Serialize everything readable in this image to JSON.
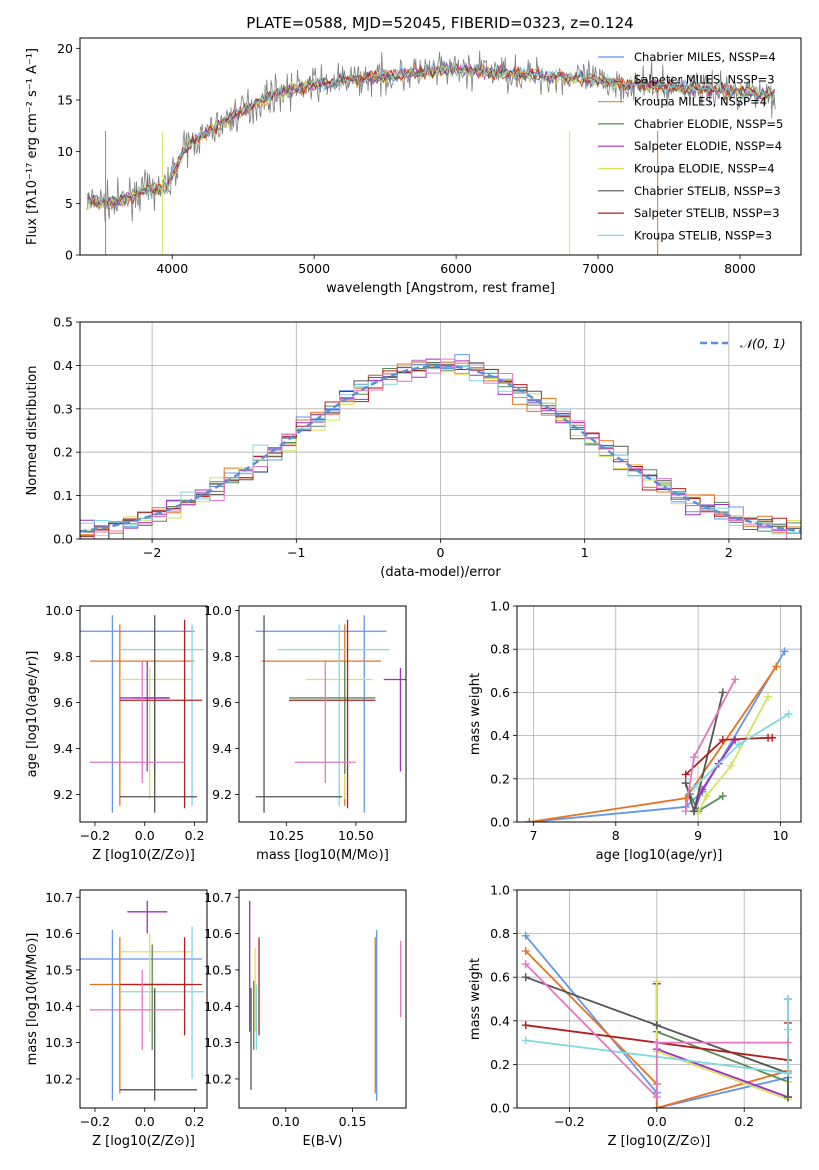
{
  "title": "PLATE=0588, MJD=52045, FIBERID=0323, z=0.124",
  "models": [
    {
      "name": "Chabrier MILES",
      "nssp": 4,
      "color": "#6495ed"
    },
    {
      "name": "Salpeter MILES",
      "nssp": 3,
      "color": "#e8731f"
    },
    {
      "name": "Kroupa MILES",
      "nssp": 4,
      "color": "#e6962c"
    },
    {
      "name": "Chabrier ELODIE",
      "nssp": 5,
      "color": "#5a8a5a"
    },
    {
      "name": "Salpeter ELODIE",
      "nssp": 4,
      "color": "#a12fc4"
    },
    {
      "name": "Kroupa ELODIE",
      "nssp": 4,
      "color": "#d6e35f"
    },
    {
      "name": "Chabrier STELIB",
      "nssp": 3,
      "color": "#555555"
    },
    {
      "name": "Salpeter STELIB",
      "nssp": 3,
      "color": "#b02020"
    },
    {
      "name": "Kroupa STELIB",
      "nssp": 3,
      "color": "#7fd9e0"
    }
  ],
  "chart_data": [
    {
      "id": "spectrum",
      "type": "line",
      "xlabel": "wavelength [Angstrom, rest frame]",
      "ylabel": "Flux [fλ10⁻¹⁷ erg cm⁻² s⁻¹ A⁻¹]",
      "xlim": [
        3350,
        8430
      ],
      "ylim": [
        0,
        21
      ],
      "xticks": [
        4000,
        5000,
        6000,
        7000,
        8000
      ],
      "yticks": [
        0,
        5,
        10,
        15,
        20
      ],
      "grid": false,
      "legend": "top-right",
      "continuum": {
        "x": [
          3400,
          3600,
          3800,
          3950,
          4100,
          4300,
          4500,
          4700,
          5000,
          5300,
          5600,
          6000,
          6400,
          6800,
          7200,
          7600,
          8000,
          8250
        ],
        "y": [
          5.2,
          5.0,
          6.2,
          6.5,
          10.5,
          12.3,
          14.0,
          15.5,
          16.5,
          17.0,
          17.5,
          18.0,
          17.6,
          17.2,
          16.5,
          16.2,
          15.8,
          15.5
        ]
      },
      "series": [
        {
          "name": "Chabrier MILES, NSSP=4",
          "color": "#6495ed"
        },
        {
          "name": "Salpeter MILES, NSSP=3",
          "color": "#e8731f"
        },
        {
          "name": "Kroupa MILES, NSSP=4",
          "color": "#e6962c"
        },
        {
          "name": "Chabrier ELODIE, NSSP=5",
          "color": "#5a8a5a"
        },
        {
          "name": "Salpeter ELODIE, NSSP=4",
          "color": "#a12fc4"
        },
        {
          "name": "Kroupa ELODIE, NSSP=4",
          "color": "#d6e35f"
        },
        {
          "name": "Chabrier STELIB, NSSP=3",
          "color": "#555555"
        },
        {
          "name": "Salpeter STELIB, NSSP=3",
          "color": "#b02020"
        },
        {
          "name": "Kroupa STELIB, NSSP=3",
          "color": "#7fd9e0"
        }
      ]
    },
    {
      "id": "residuals",
      "type": "line",
      "xlabel": "(data-model)/error",
      "ylabel": "Normed distribution",
      "xlim": [
        -2.5,
        2.5
      ],
      "ylim": [
        0,
        0.5
      ],
      "xticks": [
        -2,
        -1,
        0,
        1,
        2
      ],
      "yticks": [
        0.0,
        0.1,
        0.2,
        0.3,
        0.4,
        0.5
      ],
      "grid": true,
      "legend": "top-right",
      "reference": {
        "name": "𝒩(0, 1)",
        "color": "#5b8fd6",
        "style": "dashed"
      },
      "bin_width": 0.1,
      "series_colors": [
        "#6495ed",
        "#e8731f",
        "#5a8a5a",
        "#a12fc4",
        "#d6e35f",
        "#555555",
        "#b02020",
        "#7fd9e0",
        "#e377c2"
      ]
    },
    {
      "id": "age-vs-Z",
      "type": "scatter",
      "xlabel": "Z [log10(Z/Z⊙)]",
      "ylabel": "age  [log10(age/yr)]",
      "xlim": [
        -0.26,
        0.25
      ],
      "ylim": [
        9.08,
        10.02
      ],
      "xticks": [
        -0.2,
        0.0,
        0.2
      ],
      "yticks": [
        9.2,
        9.4,
        9.6,
        9.8,
        10.0
      ],
      "grid": false,
      "crosses": [
        {
          "color": "#6495ed",
          "x": -0.13,
          "y": 9.91,
          "x0": -0.26,
          "x1": 0.2,
          "y0": 9.12,
          "y1": 9.98
        },
        {
          "color": "#e8731f",
          "x": -0.1,
          "y": 9.78,
          "x0": -0.22,
          "x1": 0.2,
          "y0": 9.15,
          "y1": 9.94
        },
        {
          "color": "#7fd9e0",
          "x": 0.19,
          "y": 9.83,
          "x0": -0.1,
          "x1": 0.24,
          "y0": 9.15,
          "y1": 9.94
        },
        {
          "color": "#d6e35f",
          "x": 0.02,
          "y": 9.7,
          "x0": -0.1,
          "x1": 0.19,
          "y0": 9.18,
          "y1": 9.75
        },
        {
          "color": "#5a8a5a",
          "x": 0.04,
          "y": 9.62,
          "x0": -0.05,
          "x1": 0.1,
          "y0": 9.29,
          "y1": 9.78
        },
        {
          "color": "#555555",
          "x": 0.04,
          "y": 9.19,
          "x0": -0.1,
          "x1": 0.21,
          "y0": 9.12,
          "y1": 9.98
        },
        {
          "color": "#a12fc4",
          "x": 0.01,
          "y": 9.62,
          "x0": -0.1,
          "x1": 0.1,
          "y0": 9.3,
          "y1": 9.78
        },
        {
          "color": "#b02020",
          "x": 0.16,
          "y": 9.61,
          "x0": -0.1,
          "x1": 0.23,
          "y0": 9.14,
          "y1": 9.96
        },
        {
          "color": "#e377c2",
          "x": -0.01,
          "y": 9.34,
          "x0": -0.22,
          "x1": 0.16,
          "y0": 9.25,
          "y1": 9.78
        }
      ]
    },
    {
      "id": "age-vs-mass",
      "type": "scatter",
      "xlabel": "mass [log10(M/M⊙)]",
      "ylabel": "",
      "xlim": [
        10.08,
        10.68
      ],
      "ylim": [
        9.08,
        10.02
      ],
      "xticks": [
        10.25,
        10.5
      ],
      "yticks": [
        9.2,
        9.4,
        9.6,
        9.8,
        10.0
      ],
      "grid": false,
      "crosses": [
        {
          "color": "#6495ed",
          "x": 10.53,
          "y": 9.91,
          "x0": 10.14,
          "x1": 10.61,
          "y0": 9.12,
          "y1": 9.98
        },
        {
          "color": "#e8731f",
          "x": 10.46,
          "y": 9.78,
          "x0": 10.16,
          "x1": 10.59,
          "y0": 9.15,
          "y1": 9.94
        },
        {
          "color": "#7fd9e0",
          "x": 10.44,
          "y": 9.83,
          "x0": 10.22,
          "x1": 10.62,
          "y0": 9.15,
          "y1": 9.94
        },
        {
          "color": "#d6e35f",
          "x": 10.46,
          "y": 9.7,
          "x0": 10.32,
          "x1": 10.56,
          "y0": 9.18,
          "y1": 9.75
        },
        {
          "color": "#5a8a5a",
          "x": 10.46,
          "y": 9.62,
          "x0": 10.26,
          "x1": 10.57,
          "y0": 9.29,
          "y1": 9.78
        },
        {
          "color": "#555555",
          "x": 10.17,
          "y": 9.19,
          "x0": 10.14,
          "x1": 10.45,
          "y0": 9.12,
          "y1": 9.98
        },
        {
          "color": "#a12fc4",
          "x": 10.66,
          "y": 9.7,
          "x0": 10.6,
          "x1": 10.68,
          "y0": 9.3,
          "y1": 9.75
        },
        {
          "color": "#b02020",
          "x": 10.47,
          "y": 9.61,
          "x0": 10.26,
          "x1": 10.57,
          "y0": 9.14,
          "y1": 9.96
        },
        {
          "color": "#e377c2",
          "x": 10.39,
          "y": 9.34,
          "x0": 10.28,
          "x1": 10.5,
          "y0": 9.25,
          "y1": 9.78
        }
      ]
    },
    {
      "id": "weight-vs-age",
      "type": "line",
      "xlabel": "age  [log10(age/yr)]",
      "ylabel": "mass weight",
      "xlim": [
        6.8,
        10.25
      ],
      "ylim": [
        0,
        1
      ],
      "xticks": [
        7,
        8,
        9,
        10
      ],
      "yticks": [
        0.0,
        0.2,
        0.4,
        0.6,
        0.8,
        1.0
      ],
      "grid": true,
      "series": [
        {
          "color": "#6495ed",
          "x": [
            6.95,
            8.85,
            9.05,
            10.05
          ],
          "y": [
            0.0,
            0.07,
            0.14,
            0.79
          ]
        },
        {
          "color": "#e8731f",
          "x": [
            6.95,
            8.85,
            9.95
          ],
          "y": [
            0.0,
            0.11,
            0.72
          ]
        },
        {
          "color": "#5a8a5a",
          "x": [
            8.9,
            9.0,
            9.3
          ],
          "y": [
            0.13,
            0.05,
            0.12
          ]
        },
        {
          "color": "#a12fc4",
          "x": [
            8.95,
            9.05,
            9.25,
            9.45
          ],
          "y": [
            0.05,
            0.15,
            0.27,
            0.38
          ]
        },
        {
          "color": "#d6e35f",
          "x": [
            9.0,
            9.1,
            9.4,
            9.85
          ],
          "y": [
            0.04,
            0.12,
            0.26,
            0.58
          ]
        },
        {
          "color": "#555555",
          "x": [
            8.85,
            8.95,
            9.3
          ],
          "y": [
            0.18,
            0.05,
            0.6
          ]
        },
        {
          "color": "#b02020",
          "x": [
            8.85,
            9.3,
            9.85,
            9.9
          ],
          "y": [
            0.22,
            0.38,
            0.39,
            0.39
          ]
        },
        {
          "color": "#7fd9e0",
          "x": [
            8.95,
            9.5,
            10.1
          ],
          "y": [
            0.16,
            0.36,
            0.5
          ]
        },
        {
          "color": "#e377c2",
          "x": [
            8.85,
            8.95,
            9.45
          ],
          "y": [
            0.05,
            0.3,
            0.66
          ]
        }
      ]
    },
    {
      "id": "mass-vs-Z",
      "type": "scatter",
      "xlabel": "Z [log10(Z/Z⊙)]",
      "ylabel": "mass [log10(M/M⊙)]",
      "xlim": [
        -0.26,
        0.25
      ],
      "ylim": [
        10.12,
        10.72
      ],
      "xticks": [
        -0.2,
        0.0,
        0.2
      ],
      "yticks": [
        10.2,
        10.3,
        10.4,
        10.5,
        10.6,
        10.7
      ],
      "grid": false,
      "crosses": [
        {
          "color": "#6495ed",
          "x": -0.13,
          "y": 10.53,
          "x0": -0.26,
          "x1": 0.23,
          "y0": 10.14,
          "y1": 10.61
        },
        {
          "color": "#e8731f",
          "x": -0.1,
          "y": 10.46,
          "x0": -0.22,
          "x1": 0.2,
          "y0": 10.16,
          "y1": 10.59
        },
        {
          "color": "#7fd9e0",
          "x": 0.19,
          "y": 10.44,
          "x0": -0.1,
          "x1": 0.24,
          "y0": 10.2,
          "y1": 10.62
        },
        {
          "color": "#d6e35f",
          "x": 0.02,
          "y": 10.55,
          "x0": -0.1,
          "x1": 0.19,
          "y0": 10.33,
          "y1": 10.6
        },
        {
          "color": "#5a8a5a",
          "x": 0.03,
          "y": 10.46,
          "x0": -0.05,
          "x1": 0.1,
          "y0": 10.28,
          "y1": 10.57
        },
        {
          "color": "#555555",
          "x": 0.04,
          "y": 10.17,
          "x0": -0.1,
          "x1": 0.21,
          "y0": 10.14,
          "y1": 10.45
        },
        {
          "color": "#a12fc4",
          "x": 0.01,
          "y": 10.66,
          "x0": -0.07,
          "x1": 0.09,
          "y0": 10.6,
          "y1": 10.69
        },
        {
          "color": "#b02020",
          "x": 0.16,
          "y": 10.46,
          "x0": -0.1,
          "x1": 0.23,
          "y0": 10.32,
          "y1": 10.59
        },
        {
          "color": "#e377c2",
          "x": -0.01,
          "y": 10.39,
          "x0": -0.22,
          "x1": 0.16,
          "y0": 10.28,
          "y1": 10.5
        }
      ]
    },
    {
      "id": "mass-vs-EBV",
      "type": "scatter",
      "xlabel": "E(B-V)",
      "ylabel": "",
      "xlim": [
        0.065,
        0.19
      ],
      "ylim": [
        10.12,
        10.72
      ],
      "xticks": [
        0.1,
        0.15
      ],
      "yticks": [
        10.2,
        10.3,
        10.4,
        10.5,
        10.6,
        10.7
      ],
      "grid": false,
      "bars": [
        {
          "color": "#a12fc4",
          "x": 0.073,
          "y0": 10.33,
          "y1": 10.69
        },
        {
          "color": "#555555",
          "x": 0.074,
          "y0": 10.17,
          "y1": 10.45
        },
        {
          "color": "#5a8a5a",
          "x": 0.076,
          "y0": 10.28,
          "y1": 10.47
        },
        {
          "color": "#d6e35f",
          "x": 0.077,
          "y0": 10.33,
          "y1": 10.56
        },
        {
          "color": "#7fd9e0",
          "x": 0.078,
          "y0": 10.28,
          "y1": 10.46
        },
        {
          "color": "#b02020",
          "x": 0.08,
          "y0": 10.32,
          "y1": 10.59
        },
        {
          "color": "#e8731f",
          "x": 0.167,
          "y0": 10.16,
          "y1": 10.59
        },
        {
          "color": "#6495ed",
          "x": 0.168,
          "y0": 10.14,
          "y1": 10.61
        },
        {
          "color": "#e377c2",
          "x": 0.186,
          "y0": 10.37,
          "y1": 10.58
        }
      ]
    },
    {
      "id": "weight-vs-Z",
      "type": "line",
      "xlabel": "Z [log10(Z/Z⊙)]",
      "ylabel": "mass weight",
      "xlim": [
        -0.32,
        0.33
      ],
      "ylim": [
        0,
        1
      ],
      "xticks": [
        -0.2,
        0.0,
        0.2
      ],
      "yticks": [
        0.0,
        0.2,
        0.4,
        0.6,
        0.8,
        1.0
      ],
      "grid": true,
      "series": [
        {
          "color": "#6495ed",
          "x": [
            -0.3,
            0.0,
            0.0,
            0.3,
            0.3
          ],
          "y": [
            0.79,
            0.07,
            0.0,
            0.14,
            0.5
          ]
        },
        {
          "color": "#e8731f",
          "x": [
            -0.3,
            0.0,
            0.0,
            0.3
          ],
          "y": [
            0.72,
            0.11,
            0.0,
            0.17
          ]
        },
        {
          "color": "#5a8a5a",
          "x": [
            0.0,
            0.0,
            0.3,
            0.3
          ],
          "y": [
            0.57,
            0.35,
            0.12,
            0.05
          ]
        },
        {
          "color": "#a12fc4",
          "x": [
            0.0,
            0.0,
            0.3
          ],
          "y": [
            0.57,
            0.27,
            0.05
          ]
        },
        {
          "color": "#d6e35f",
          "x": [
            0.0,
            0.0,
            0.3,
            0.3
          ],
          "y": [
            0.58,
            0.26,
            0.04,
            0.12
          ]
        },
        {
          "color": "#555555",
          "x": [
            -0.3,
            0.0,
            0.3,
            0.3
          ],
          "y": [
            0.6,
            0.38,
            0.16,
            0.05
          ]
        },
        {
          "color": "#b02020",
          "x": [
            -0.3,
            0.3,
            0.3
          ],
          "y": [
            0.38,
            0.22,
            0.39
          ]
        },
        {
          "color": "#7fd9e0",
          "x": [
            -0.3,
            0.3,
            0.3,
            0.3
          ],
          "y": [
            0.31,
            0.16,
            0.36,
            0.5
          ]
        },
        {
          "color": "#e377c2",
          "x": [
            -0.3,
            0.0,
            0.0,
            0.3
          ],
          "y": [
            0.66,
            0.05,
            0.3,
            0.3
          ]
        }
      ]
    }
  ]
}
